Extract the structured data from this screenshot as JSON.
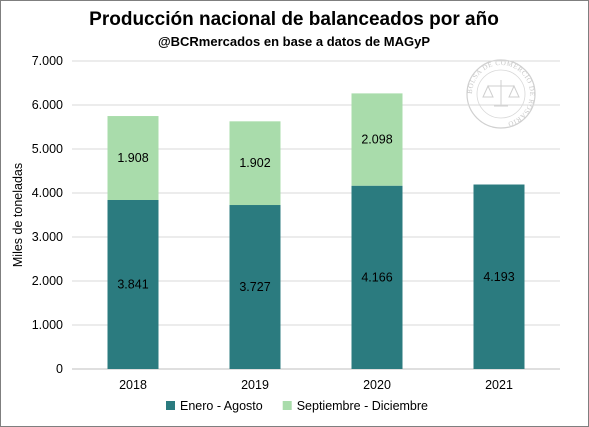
{
  "chart_data": {
    "type": "bar",
    "stacked": true,
    "title": "Producción nacional de balanceados por año",
    "subtitle": "@BCRmercados en base a datos de MAGyP",
    "xlabel": "",
    "ylabel": "Miles de toneladas",
    "ylim": [
      0,
      7000
    ],
    "yticks": [
      0,
      1000,
      2000,
      3000,
      4000,
      5000,
      6000,
      7000
    ],
    "ytick_labels": [
      "0",
      "1.000",
      "2.000",
      "3.000",
      "4.000",
      "5.000",
      "6.000",
      "7.000"
    ],
    "categories": [
      "2018",
      "2019",
      "2020",
      "2021"
    ],
    "grid": true,
    "legend_position": "bottom",
    "series": [
      {
        "name": "Enero - Agosto",
        "color": "#2b7b7f",
        "values": [
          3841,
          3727,
          4166,
          4193
        ],
        "labels": [
          "3.841",
          "3.727",
          "4.166",
          "4.193"
        ]
      },
      {
        "name": "Septiembre - Diciembre",
        "color": "#a9dcab",
        "values": [
          1908,
          1902,
          2098,
          null
        ],
        "labels": [
          "1.908",
          "1.902",
          "2.098",
          ""
        ]
      }
    ]
  },
  "watermark": {
    "text": "BOLSA DE COMERCIO DE ROSARIO",
    "color": "#c8c8c8"
  }
}
